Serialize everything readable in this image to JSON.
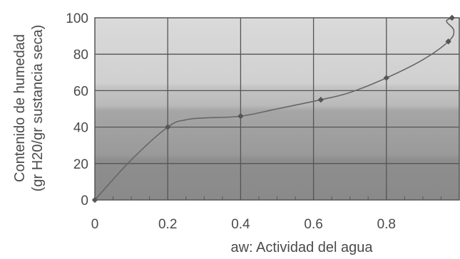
{
  "chart_data": {
    "type": "line",
    "xlabel": "aw: Actividad del agua",
    "ylabel_line1": "Contenido de humedad",
    "ylabel_line2": "(gr H20/gr sustancia seca)",
    "xlim": [
      0,
      1.0
    ],
    "ylim": [
      0,
      100
    ],
    "x_ticks": [
      0,
      0.2,
      0.4,
      0.6,
      0.8
    ],
    "x_tick_labels": [
      "0",
      "0.2",
      "0.4",
      "0.6",
      "0.8"
    ],
    "y_ticks": [
      0,
      20,
      40,
      60,
      80,
      100
    ],
    "y_tick_labels": [
      "0",
      "20",
      "40",
      "60",
      "80",
      "100"
    ],
    "grid": true,
    "series": [
      {
        "markers": [
          {
            "x": 0,
            "y": 0
          },
          {
            "x": 0.2,
            "y": 40
          },
          {
            "x": 0.4,
            "y": 46
          },
          {
            "x": 0.62,
            "y": 55
          },
          {
            "x": 0.8,
            "y": 67
          },
          {
            "x": 0.97,
            "y": 87
          },
          {
            "x": 0.98,
            "y": 100
          }
        ],
        "curve": [
          {
            "x": 0,
            "y": 0
          },
          {
            "x": 0.1,
            "y": 22
          },
          {
            "x": 0.2,
            "y": 40
          },
          {
            "x": 0.25,
            "y": 44
          },
          {
            "x": 0.3,
            "y": 45
          },
          {
            "x": 0.4,
            "y": 46
          },
          {
            "x": 0.5,
            "y": 50
          },
          {
            "x": 0.62,
            "y": 55
          },
          {
            "x": 0.7,
            "y": 59
          },
          {
            "x": 0.8,
            "y": 67
          },
          {
            "x": 0.9,
            "y": 77
          },
          {
            "x": 0.97,
            "y": 87
          },
          {
            "x": 0.985,
            "y": 93
          },
          {
            "x": 0.965,
            "y": 98
          },
          {
            "x": 0.98,
            "y": 100
          }
        ],
        "color": "#666666"
      }
    ],
    "background_colors": [
      "#dadada",
      "#c6c6c6",
      "#a0a0a0",
      "#909090"
    ],
    "grid_color": "#555555"
  }
}
